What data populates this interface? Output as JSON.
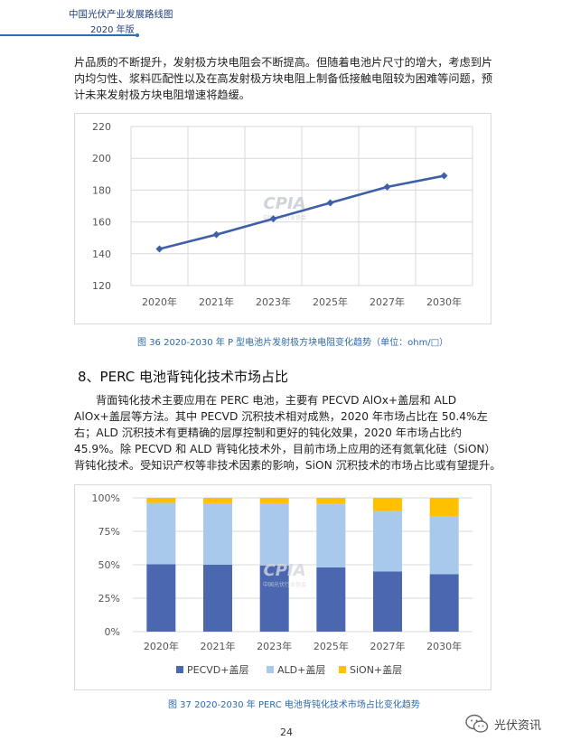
{
  "header": {
    "title": "中国光伏产业发展路线图",
    "year": "2020 年版"
  },
  "paragraph1": "片品质的不断提升，发射极方块电阻会不断提高。但随着电池片尺寸的增大，考虑到片内均匀性、浆料匹配性以及在高发射极方块电阻上制备低接触电阻较为困难等问题，预计未来发射极方块电阻增速将趋缓。",
  "section_title": "8、PERC 电池背钝化技术市场占比",
  "paragraph2": "背面钝化技术主要应用在 PERC 电池，主要有 PECVD AlOx+盖层和 ALD AlOx+盖层等方法。其中 PECVD 沉积技术相对成熟，2020 年市场占比在 50.4%左右；ALD 沉积技术有更精确的层厚控制和更好的钝化效果，2020 年市场占比约 45.9%。除 PECVD 和 ALD 背钝化技术外，目前市场上应用的还有氮氧化硅（SiON）背钝化技术。受知识产权等非技术因素的影响，SiON 沉积技术的市场占比或有望提升。",
  "watermark": {
    "logo": "CPIA",
    "sub": "中国光伏行业协会"
  },
  "chart_data": [
    {
      "type": "line",
      "categories": [
        "2020年",
        "2021年",
        "2023年",
        "2025年",
        "2027年",
        "2030年"
      ],
      "values": [
        143,
        152,
        162,
        172,
        182,
        189
      ],
      "ylim": [
        120,
        220
      ],
      "yticks": [
        120,
        140,
        160,
        180,
        200,
        220
      ],
      "title": "",
      "xlabel": "",
      "ylabel": "",
      "color": "#3f5fa8",
      "caption": "图 36   2020-2030 年 P 型电池片发射极方块电阻变化趋势（单位：ohm/□）"
    },
    {
      "type": "bar",
      "stacked": true,
      "categories": [
        "2020年",
        "2021年",
        "2023年",
        "2025年",
        "2027年",
        "2030年"
      ],
      "series": [
        {
          "name": "PECVD+盖层",
          "color": "#4a67b0",
          "values": [
            50.4,
            50.0,
            49.5,
            48.0,
            45.0,
            43.0
          ]
        },
        {
          "name": "ALD+盖层",
          "color": "#a8c8ec",
          "values": [
            45.9,
            46.0,
            46.5,
            47.5,
            45.0,
            43.0
          ]
        },
        {
          "name": "SiON+盖层",
          "color": "#ffc000",
          "values": [
            3.7,
            4.0,
            4.0,
            4.5,
            10.0,
            14.0
          ]
        }
      ],
      "ylim": [
        0,
        100
      ],
      "yticks": [
        "0%",
        "25%",
        "50%",
        "75%",
        "100%"
      ],
      "legend_position": "bottom",
      "caption": "图 37   2020-2030 年 PERC 电池背钝化技术市场占比变化趋势"
    }
  ],
  "page_number": "24",
  "wechat_account": "光伏资讯"
}
